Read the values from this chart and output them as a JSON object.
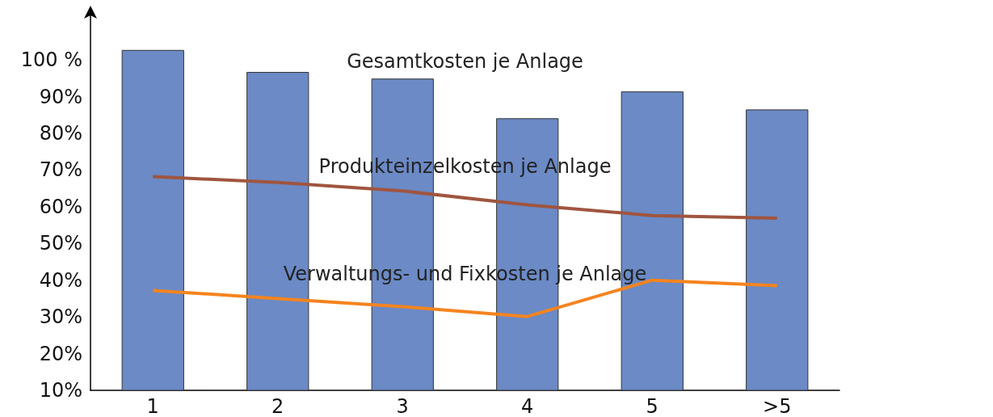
{
  "chart_data": {
    "type": "bar",
    "categories": [
      "1",
      "2",
      "3",
      "4",
      "5",
      ">5"
    ],
    "series": [
      {
        "name": "Gesamtkosten je Anlage",
        "color": "#6b8ac6",
        "values": [
          102.7,
          96.7,
          94.9,
          84.1,
          91.4,
          86.5
        ]
      },
      {
        "name": "Produkteinzelkosten je Anlage",
        "type": "line",
        "color": "#a0553f",
        "values": [
          68.2,
          66.6,
          64.3,
          60.5,
          57.6,
          56.9
        ]
      },
      {
        "name": "Verwaltungs- und Fixkosten je Anlage",
        "type": "line",
        "color": "#f5841f",
        "values": [
          37.2,
          35.0,
          32.8,
          30.1,
          40.0,
          38.5
        ]
      }
    ],
    "ylim": [
      10,
      113
    ],
    "yticks": [
      {
        "value": 10,
        "label": "10%"
      },
      {
        "value": 20,
        "label": "20%"
      },
      {
        "value": 30,
        "label": "30%"
      },
      {
        "value": 40,
        "label": "40%"
      },
      {
        "value": 50,
        "label": "50%"
      },
      {
        "value": 60,
        "label": "60%"
      },
      {
        "value": 70,
        "label": "70%"
      },
      {
        "value": 80,
        "label": "80%"
      },
      {
        "value": 90,
        "label": "90%"
      },
      {
        "value": 100,
        "label": "100 %"
      }
    ],
    "grid": false,
    "legend": false,
    "marker": "none",
    "line_style": "solid"
  }
}
